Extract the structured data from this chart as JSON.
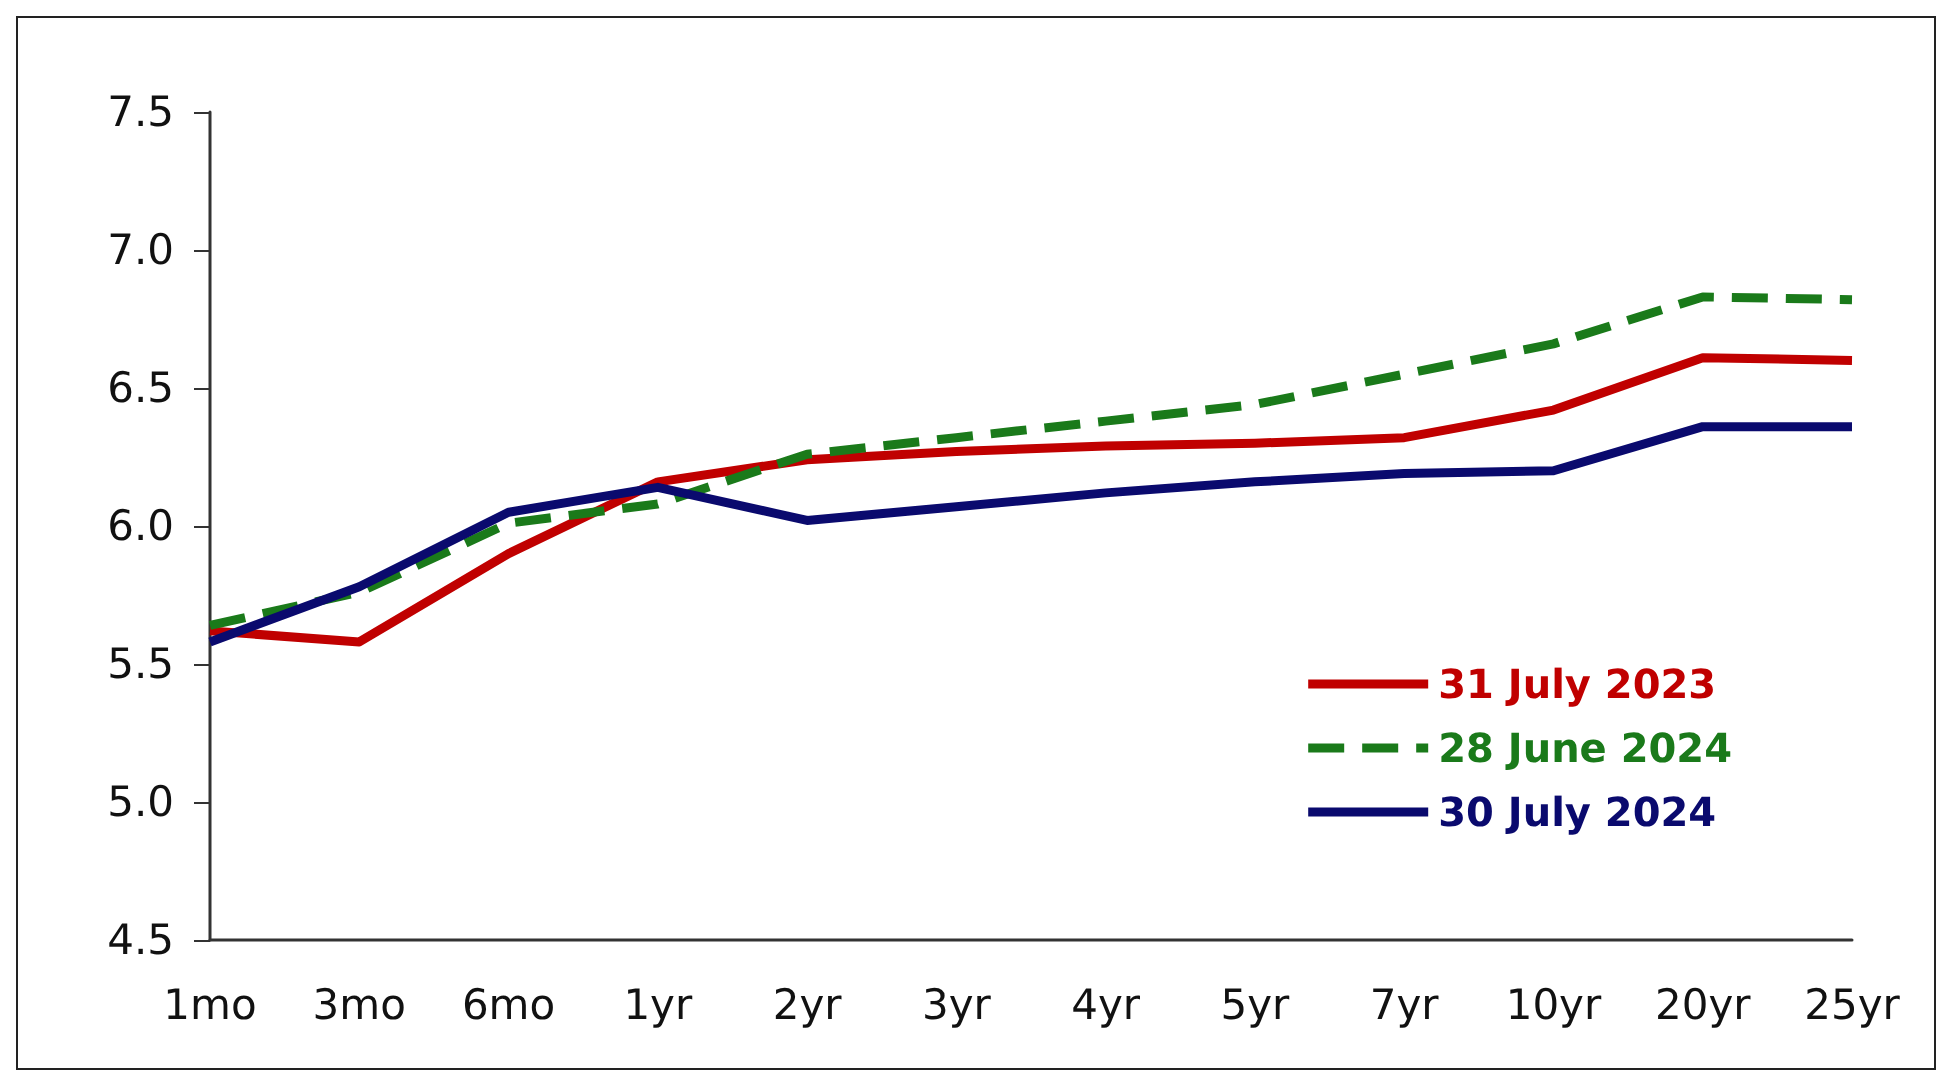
{
  "chart_data": {
    "type": "line",
    "categories": [
      "1mo",
      "3mo",
      "6mo",
      "1yr",
      "2yr",
      "3yr",
      "4yr",
      "5yr",
      "7yr",
      "10yr",
      "20yr",
      "25yr"
    ],
    "series": [
      {
        "name": "31 July 2023",
        "color": "#c00000",
        "line_style": "solid",
        "values": [
          5.62,
          5.58,
          5.9,
          6.16,
          6.24,
          6.27,
          6.29,
          6.3,
          6.32,
          6.42,
          6.61,
          6.6
        ]
      },
      {
        "name": "28 June 2024",
        "color": "#1a7a1a",
        "line_style": "dashed",
        "values": [
          5.64,
          5.76,
          6.01,
          6.08,
          6.26,
          6.32,
          6.38,
          6.44,
          6.55,
          6.66,
          6.83,
          6.82
        ]
      },
      {
        "name": "30 July 2024",
        "color": "#0a0a6e",
        "line_style": "solid",
        "values": [
          5.58,
          5.78,
          6.05,
          6.14,
          6.02,
          6.07,
          6.12,
          6.16,
          6.19,
          6.2,
          6.36,
          6.36
        ]
      }
    ],
    "ylim": [
      4.5,
      7.5
    ],
    "yticks": [
      4.5,
      {
        "value": 5,
        "label": "5.0"
      },
      5.5,
      {
        "value": 6,
        "label": "6.0"
      },
      6.5,
      {
        "value": 7,
        "label": "7.0"
      },
      7.5
    ],
    "grid": false,
    "legend": "right",
    "marker": "none"
  }
}
